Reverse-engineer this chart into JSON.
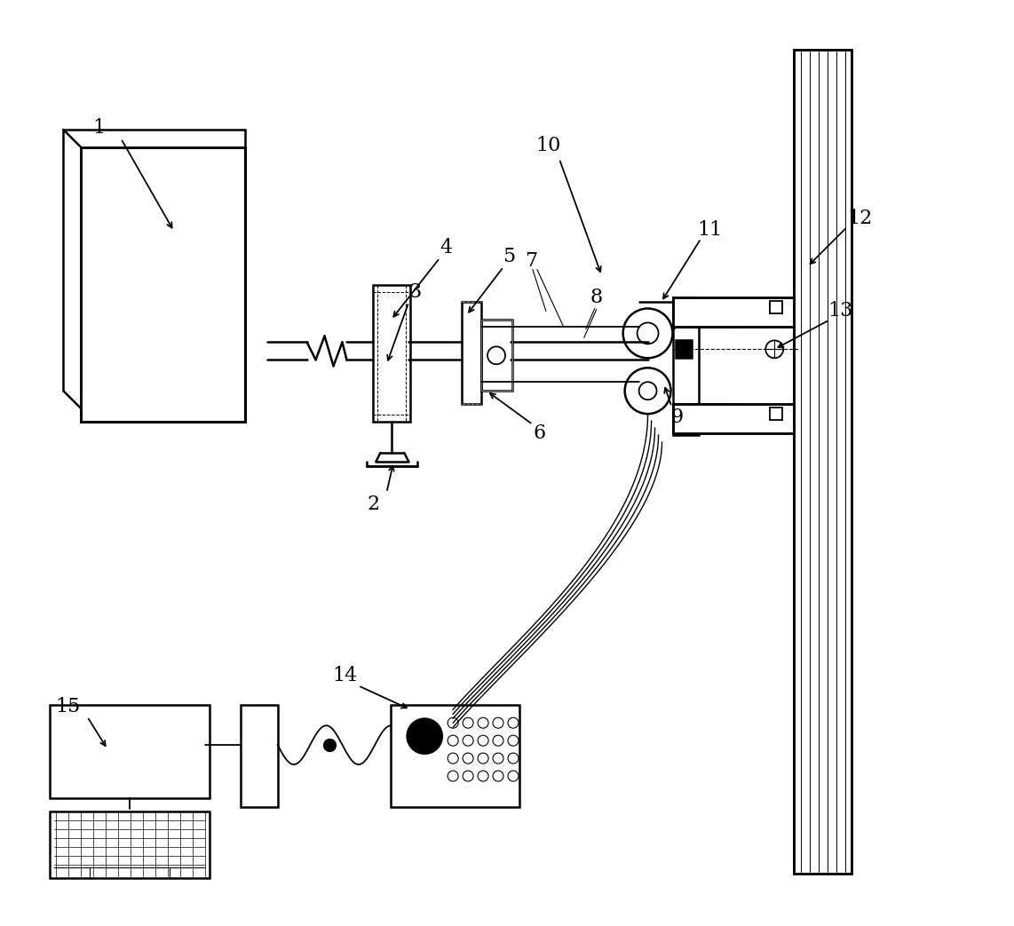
{
  "bg_color": "#ffffff",
  "line_color": "#000000",
  "lw": 1.3,
  "lw2": 1.8
}
